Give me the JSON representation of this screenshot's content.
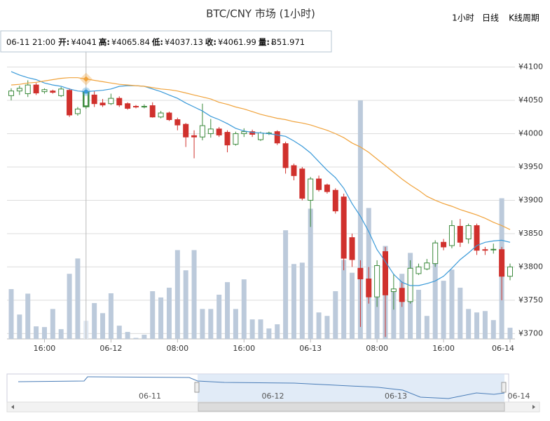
{
  "chart_data": {
    "type": "candlestick",
    "title": "BTC/CNY 市场 (1小时)",
    "buttons": [
      "1小时",
      "日线",
      "K线周期"
    ],
    "categories": [
      null,
      null,
      null,
      null,
      "16:00",
      null,
      null,
      null,
      null,
      null,
      null,
      null,
      "06-12",
      null,
      null,
      null,
      null,
      null,
      null,
      null,
      "08:00",
      null,
      null,
      null,
      null,
      null,
      null,
      null,
      "16:00",
      null,
      null,
      null,
      null,
      null,
      null,
      null,
      "06-13",
      null,
      null,
      null,
      null,
      null,
      null,
      null,
      "08:00",
      null,
      null,
      null,
      null,
      null,
      null,
      null,
      "16:00",
      null,
      null,
      null,
      null,
      null,
      null,
      null,
      "06-14"
    ],
    "open": [
      4057,
      4064,
      4060,
      4073,
      4063,
      4064,
      4057,
      4065,
      4030,
      4041,
      4058,
      4046,
      4045,
      4053,
      4045,
      4041,
      4040,
      4042,
      4025,
      4031,
      4021,
      4014,
      3997,
      3995,
      4000,
      4007,
      4002,
      3984,
      4000,
      4003,
      3991,
      4000,
      4003,
      3985,
      3952,
      3947,
      3900,
      3932,
      3923,
      3915,
      3905,
      3844,
      3798,
      3782,
      3755,
      3823,
      3763,
      3768,
      3748,
      3790,
      3797,
      3805,
      3837,
      3832,
      3861,
      3842,
      3862,
      3826,
      3826,
      3826,
      3786
    ],
    "high": [
      4068,
      4072,
      4080,
      4076,
      4068,
      4066,
      4070,
      4068,
      4040,
      4065.84,
      4064,
      4052,
      4060,
      4056,
      4047,
      4043,
      4044,
      4047,
      4034,
      4033,
      4024,
      4016,
      4005,
      4045,
      4022,
      4010,
      4005,
      4003,
      4008,
      4006,
      4003,
      4003,
      4005,
      3988,
      3955,
      3950,
      3935,
      3937,
      3925,
      3918,
      3910,
      3850,
      3810,
      3800,
      3810,
      3830,
      3790,
      3778,
      3810,
      3805,
      3812,
      3840,
      3842,
      3870,
      3872,
      3865,
      3865,
      3830,
      3835,
      3830,
      3805
    ],
    "low": [
      4050,
      4058,
      4055,
      4058,
      4060,
      4060,
      4055,
      4025,
      4027,
      4037.13,
      4040,
      4040,
      4043,
      4040,
      4036,
      4038,
      4038,
      4024,
      4023,
      4019,
      4005,
      3980,
      3963,
      3990,
      3994,
      3995,
      3972,
      3982,
      3995,
      3995,
      3989,
      3998,
      3983,
      3940,
      3930,
      3900,
      3860,
      3913,
      3910,
      3880,
      3795,
      3800,
      3710,
      3745,
      3740,
      3695,
      3736,
      3740,
      3745,
      3788,
      3795,
      3800,
      3825,
      3828,
      3830,
      3835,
      3818,
      3818,
      3820,
      3750,
      3780
    ],
    "close": [
      4064,
      4068,
      4073,
      4061,
      4066,
      4062,
      4067,
      4028,
      4037,
      4061.99,
      4045,
      4043,
      4053,
      4043,
      4038,
      4040,
      4041,
      4025,
      4031,
      4021,
      4013,
      3995,
      3995,
      4012,
      4007,
      3998,
      3983,
      4000,
      4003,
      3999,
      4001,
      4001,
      3986,
      3949,
      3937,
      3903,
      3932,
      3916,
      3913,
      3884,
      3813,
      3811,
      3782,
      3755,
      3802,
      3758,
      3767,
      3748,
      3798,
      3800,
      3806,
      3836,
      3830,
      3862,
      3837,
      3862,
      3825,
      3825,
      3826.5,
      3786,
      3800
    ],
    "volume": [
      143,
      70,
      130,
      36,
      34,
      86,
      28,
      187,
      231,
      51.971,
      103,
      74,
      131,
      38,
      20,
      3,
      12,
      137,
      119,
      147,
      255,
      197,
      255,
      86,
      86,
      127,
      163,
      86,
      171,
      56,
      56,
      30,
      42,
      312,
      215,
      219,
      374,
      76,
      66,
      137,
      227,
      190,
      685,
      376,
      119,
      267,
      141,
      187,
      247,
      141,
      66,
      277,
      167,
      199,
      147,
      86,
      76,
      80,
      54,
      404,
      32
    ],
    "ma_lines": [
      {
        "color": "#3a9ad9",
        "values": [
          4093,
          4088,
          4084,
          4081,
          4076,
          4073,
          4071,
          4067,
          4064,
          4063,
          4064,
          4065,
          4067,
          4071,
          4072,
          4072,
          4071,
          4067,
          4063,
          4058,
          4053,
          4046,
          4040,
          4034,
          4026,
          4021,
          4015,
          4008,
          4004,
          4002,
          4001,
          4000,
          3998,
          3996,
          3989,
          3981,
          3971,
          3958,
          3945,
          3934,
          3918,
          3895,
          3876,
          3853,
          3826,
          3808,
          3789,
          3777,
          3772,
          3772,
          3775,
          3779,
          3786,
          3798,
          3811,
          3821,
          3832,
          3837,
          3839,
          3840,
          3837
        ]
      },
      {
        "color": "#f0a33c",
        "values": [
          4073,
          4074,
          4076,
          4077,
          4079,
          4081,
          4083,
          4084,
          4084,
          4082,
          4080,
          4078,
          4076,
          4074,
          4073,
          4072,
          4071,
          4069,
          4067,
          4066,
          4064,
          4061,
          4058,
          4055,
          4052,
          4047,
          4044,
          4040,
          4037,
          4033,
          4029,
          4026,
          4023,
          4021,
          4018,
          4016,
          4013,
          4009,
          4005,
          4000,
          3994,
          3986,
          3980,
          3972,
          3962,
          3952,
          3942,
          3932,
          3923,
          3915,
          3906,
          3900,
          3895,
          3891,
          3886,
          3882,
          3878,
          3873,
          3867,
          3862,
          3856
        ]
      }
    ],
    "up_color": "#3c8a3c",
    "down_color": "#d0312d",
    "volume_color": "#bccadb",
    "ylim": [
      3692,
      4110
    ],
    "yticks": [
      {
        "value": 3700,
        "label": "¥3700"
      },
      {
        "value": 3750,
        "label": "¥3750"
      },
      {
        "value": 3800,
        "label": "¥3800"
      },
      {
        "value": 3850,
        "label": "¥3850"
      },
      {
        "value": 3900,
        "label": "¥3900"
      },
      {
        "value": 3950,
        "label": "¥3950"
      },
      {
        "value": 4000,
        "label": "¥4000"
      },
      {
        "value": 4050,
        "label": "¥4050"
      },
      {
        "value": 4100,
        "label": "¥4100"
      }
    ],
    "y2lim": [
      0,
      800
    ],
    "grid": true,
    "highlight_index": 9,
    "tooltip": {
      "time": "06-11 21:00",
      "items": [
        {
          "label": "开:",
          "value": "¥4041"
        },
        {
          "label": "高:",
          "value": "¥4065.84"
        },
        {
          "label": "低:",
          "value": "¥4037.13"
        },
        {
          "label": "收:",
          "value": "¥4061.99"
        },
        {
          "label": "量:",
          "value": "Ƀ51.971"
        }
      ]
    },
    "navigator_labels": [
      "06-11",
      "06-12",
      "06-13",
      "06-14"
    ]
  }
}
